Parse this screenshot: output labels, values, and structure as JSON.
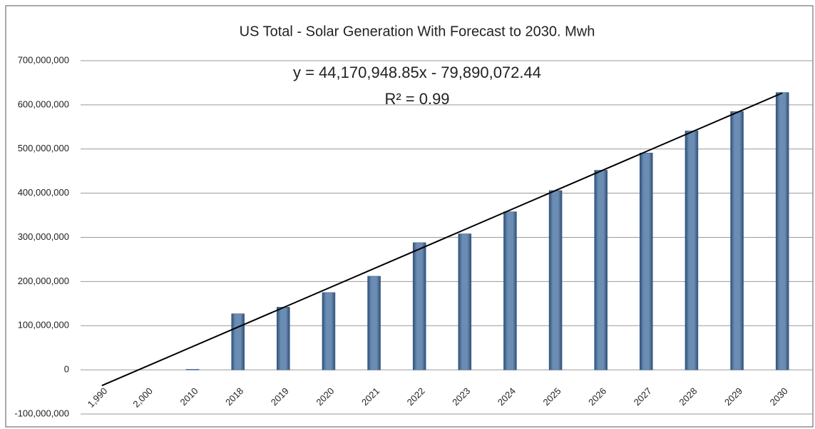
{
  "chart_data": {
    "type": "bar",
    "title": "US Total - Solar Generation With Forecast to 2030. Mwh",
    "categories": [
      "1,990",
      "2,000",
      "2010",
      "2018",
      "2019",
      "2020",
      "2021",
      "2022",
      "2023",
      "2024",
      "2025",
      "2026",
      "2027",
      "2028",
      "2029",
      "2030"
    ],
    "values": [
      0,
      0,
      1200000,
      127000000,
      142000000,
      175000000,
      212000000,
      288000000,
      308000000,
      358000000,
      406000000,
      452000000,
      491000000,
      541000000,
      585000000,
      628000000
    ],
    "color": "#5b7ea6",
    "ylim": [
      -100000000,
      700000000
    ],
    "yticks": [
      {
        "value": -100000000,
        "label": "-100,000,000"
      },
      0,
      {
        "value": 100000000,
        "label": "100,000,000"
      },
      {
        "value": 200000000,
        "label": "200,000,000"
      },
      {
        "value": 300000000,
        "label": "300,000,000"
      },
      {
        "value": 400000000,
        "label": "400,000,000"
      },
      {
        "value": 500000000,
        "label": "500,000,000"
      },
      {
        "value": 600000000,
        "label": "600,000,000"
      },
      {
        "value": 700000000,
        "label": "700,000,000"
      }
    ],
    "grid": true,
    "trendline": {
      "slope": 44170948.85,
      "intercept": -79890072.44,
      "equation_label": "y = 44,170,948.85x - 79,890,072.44",
      "r2_label": "R² = 0.99",
      "color": "#000000"
    }
  }
}
